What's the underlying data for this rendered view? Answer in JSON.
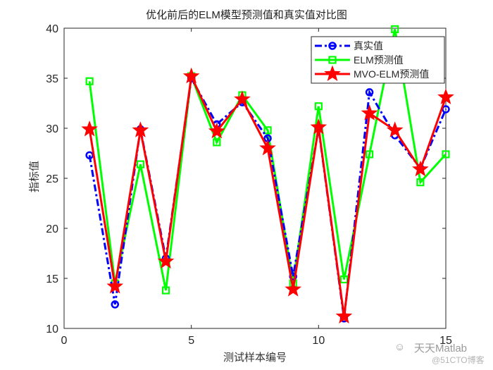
{
  "chart_data": {
    "type": "line",
    "title": "优化前后的ELM模型预测值和真实值对比图",
    "xlabel": "测试样本编号",
    "ylabel": "指标值",
    "xlim": [
      0,
      15
    ],
    "ylim": [
      10,
      40
    ],
    "xticks": [
      0,
      5,
      10,
      15
    ],
    "yticks": [
      10,
      15,
      20,
      25,
      30,
      35,
      40
    ],
    "grid": false,
    "legend_position": "upper right",
    "x": [
      1,
      2,
      3,
      4,
      5,
      6,
      7,
      8,
      9,
      10,
      11,
      12,
      13,
      14,
      15
    ],
    "series": [
      {
        "name": "真实值",
        "color": "#0000ff",
        "line_style": "dash-dot",
        "marker": "circle",
        "values": [
          27.3,
          12.4,
          29.9,
          17.0,
          35.0,
          30.4,
          32.6,
          29.0,
          15.2,
          30.0,
          11.0,
          33.6,
          29.3,
          26.0,
          31.9
        ]
      },
      {
        "name": "ELM预测值",
        "color": "#00ff00",
        "line_style": "solid",
        "marker": "square",
        "values": [
          34.7,
          14.5,
          26.4,
          13.8,
          35.2,
          28.6,
          33.3,
          29.8,
          14.5,
          32.2,
          14.9,
          27.4,
          39.9,
          24.6,
          27.4
        ]
      },
      {
        "name": "MVO-ELM预测值",
        "color": "#ff0000",
        "line_style": "solid",
        "marker": "star",
        "values": [
          29.9,
          14.2,
          29.8,
          16.7,
          35.2,
          29.7,
          32.9,
          28.0,
          13.9,
          30.1,
          11.2,
          31.5,
          29.8,
          25.9,
          33.1
        ]
      }
    ]
  },
  "watermark": {
    "line1": "天天Matlab",
    "line2": "@51CTO博客",
    "icon": "wechat-icon"
  }
}
